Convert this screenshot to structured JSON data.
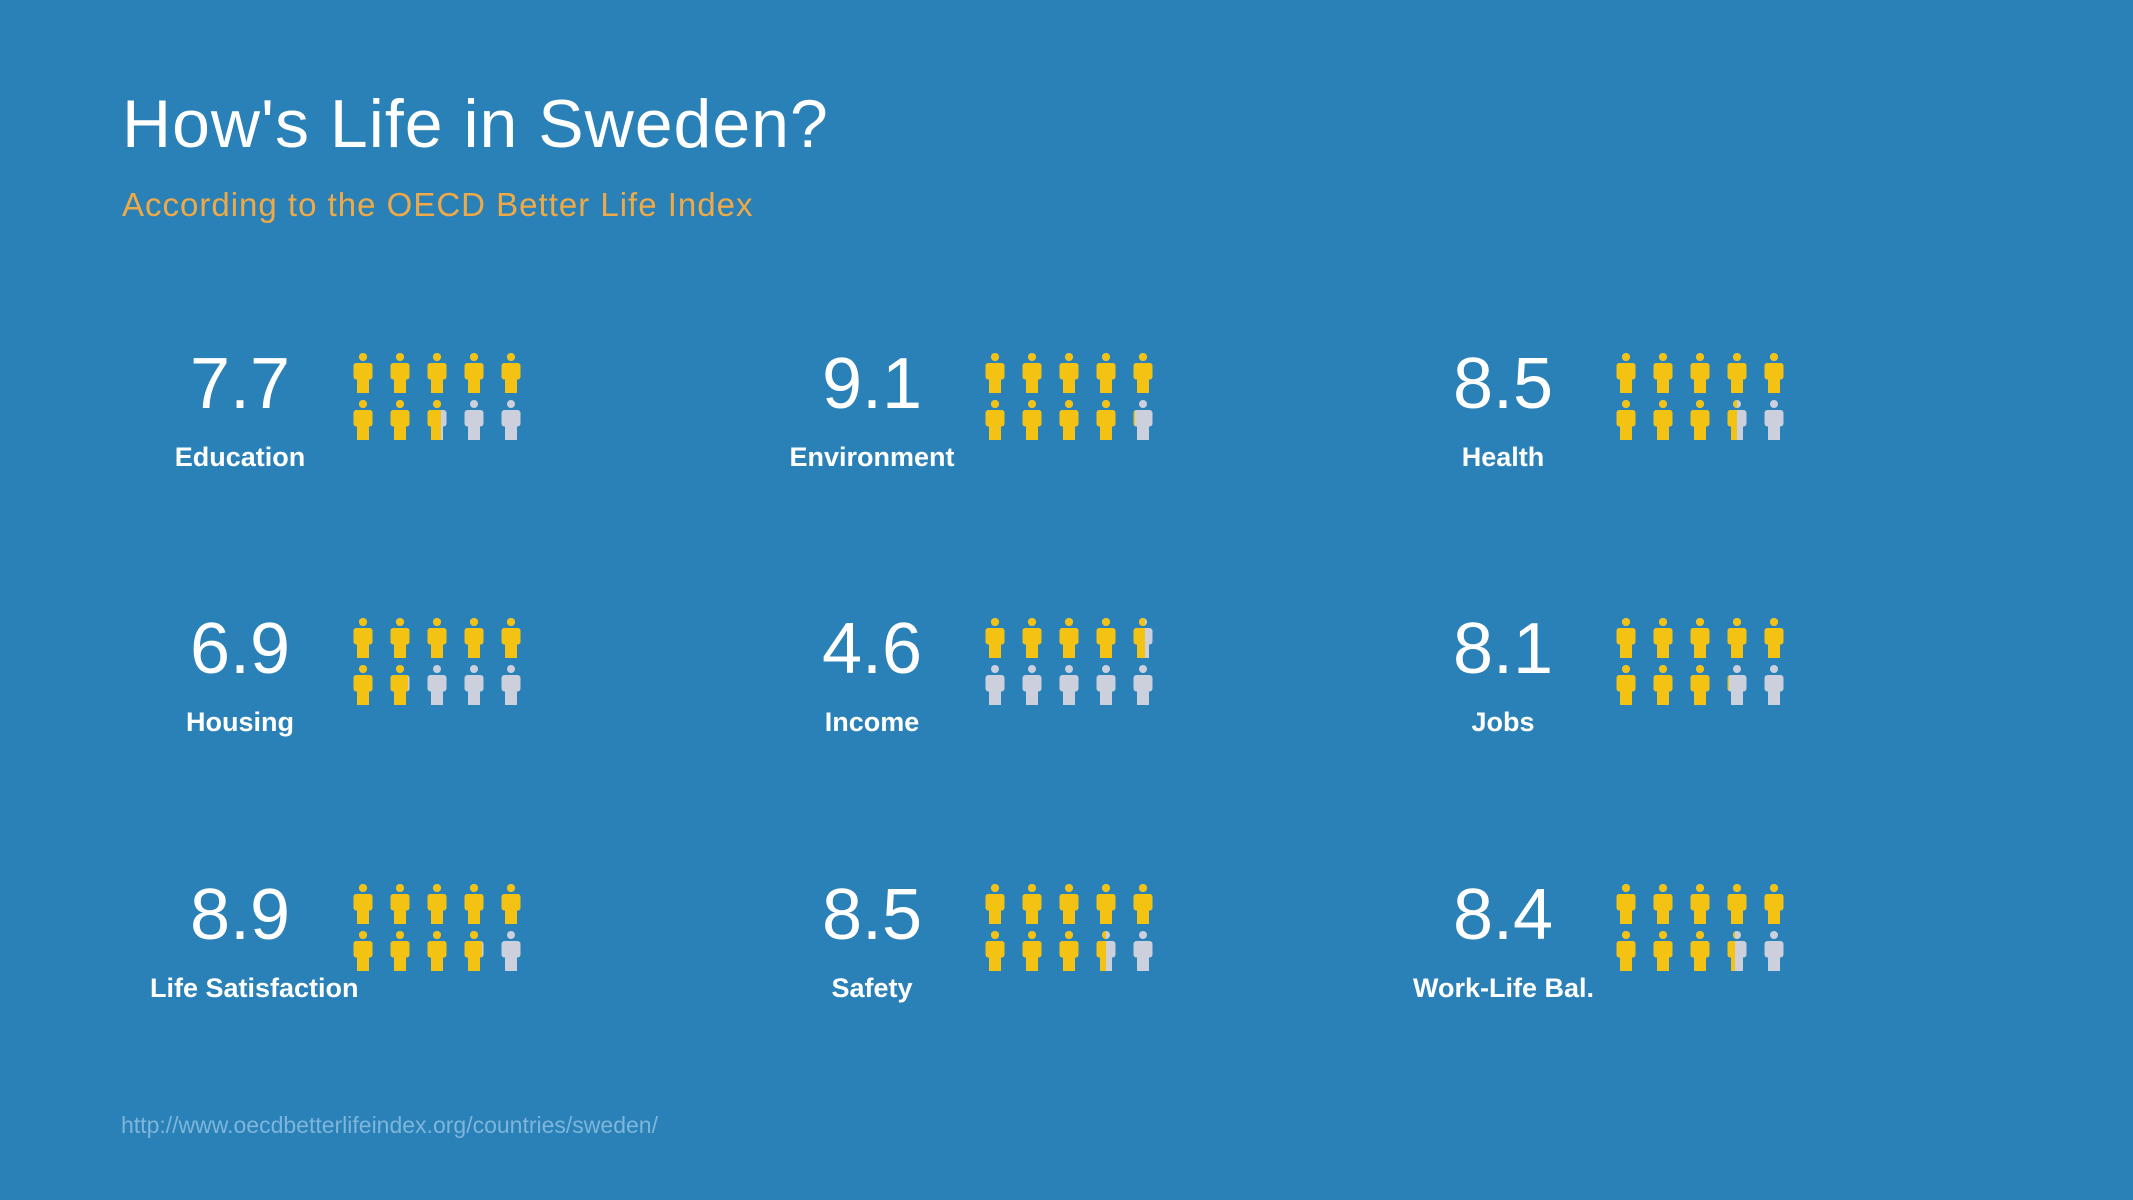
{
  "page": {
    "background_color": "#2981B7",
    "title": "How's Life in Sweden?",
    "subtitle": "According to the OECD Better Life Index",
    "source_url": "http://www.oecdbetterlifeindex.org/countries/sweden/"
  },
  "colors": {
    "title_text": "#FFFFFF",
    "subtitle_text": "#F0A947",
    "metric_text": "#FFFFFF",
    "person_filled": "#F3C212",
    "person_empty": "#CBD0DC",
    "url_text": "#7EB5DA"
  },
  "chart_data": {
    "type": "pictogram",
    "title": "How's Life in Sweden?",
    "subtitle": "According to the OECD Better Life Index",
    "scale_min": 0,
    "scale_max": 10,
    "icons_per_metric": 10,
    "icon": "person-icon",
    "layout": "3x3 grid, each metric shows score number, label, and 10 person icons (2 rows of 5) filled proportionally to score out of 10",
    "metrics": [
      {
        "label": "Education",
        "value": 7.7
      },
      {
        "label": "Environment",
        "value": 9.1
      },
      {
        "label": "Health",
        "value": 8.5
      },
      {
        "label": "Housing",
        "value": 6.9
      },
      {
        "label": "Income",
        "value": 4.6
      },
      {
        "label": "Jobs",
        "value": 8.1
      },
      {
        "label": "Life Satisfaction",
        "value": 8.9
      },
      {
        "label": "Safety",
        "value": 8.5
      },
      {
        "label": "Work-Life Bal.",
        "value": 8.4
      }
    ],
    "source": "http://www.oecdbetterlifeindex.org/countries/sweden/"
  }
}
